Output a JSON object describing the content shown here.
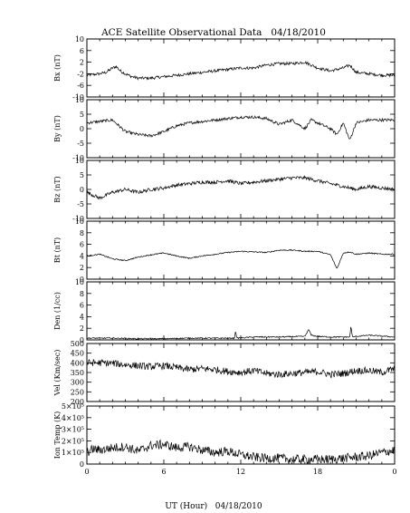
{
  "chart_data": {
    "type": "line",
    "title": "ACE Satellite Observational Data   04/18/2010",
    "xlabel": "UT (Hour)   04/18/2010",
    "x_ticks": [
      "0",
      "6",
      "12",
      "18",
      "0"
    ],
    "xlim": [
      0,
      24
    ],
    "grid": false,
    "panels": [
      {
        "name": "bx",
        "ylabel": "Bx (nT)",
        "ylim": [
          -10,
          10
        ],
        "yticks": [
          -10,
          -6,
          -2,
          2,
          6,
          10
        ],
        "ytick_labels": [
          "-10",
          "-6",
          "-2",
          "2",
          "6",
          "10"
        ],
        "series": [
          {
            "x": [
              0,
              1,
              1.5,
              2,
              2.3,
              2.6,
              3,
              3.5,
              4,
              5,
              6,
              7,
              8,
              9,
              10,
              11,
              12,
              13,
              14,
              15,
              16,
              17,
              17.5,
              18,
              19,
              19.5,
              20,
              20.5,
              21,
              22,
              23,
              24
            ],
            "y": [
              -2.5,
              -2,
              -1.5,
              0,
              0.5,
              -1,
              -2,
              -3,
              -3.5,
              -3.5,
              -3,
              -2.5,
              -2,
              -1.5,
              -1,
              -0.5,
              0,
              0,
              1,
              1.5,
              1.5,
              2,
              1,
              0,
              -1,
              -0.5,
              0,
              1,
              -1.5,
              -2,
              -2.5,
              -2.5
            ]
          }
        ]
      },
      {
        "name": "by",
        "ylabel": "By (nT)",
        "ylim": [
          -10,
          10
        ],
        "yticks": [
          -10,
          -5,
          0,
          5,
          10
        ],
        "ytick_labels": [
          "-10",
          "-5",
          "0",
          "5",
          "10"
        ],
        "series": [
          {
            "x": [
              0,
              1,
              2,
              2.5,
              3,
              4,
              5,
              6,
              7,
              8,
              9,
              10,
              11,
              12,
              13,
              14,
              15,
              16,
              17,
              17.5,
              18,
              18.5,
              19,
              19.5,
              20,
              20.5,
              21,
              22,
              23,
              24
            ],
            "y": [
              2,
              2.5,
              3,
              1,
              -1,
              -2,
              -2.5,
              -1,
              1,
              2,
              2.5,
              3,
              3.5,
              4,
              4,
              3.5,
              1.5,
              3,
              0,
              3,
              2,
              1,
              0,
              -2,
              2,
              -4,
              2,
              3,
              3,
              3
            ]
          }
        ]
      },
      {
        "name": "bz",
        "ylabel": "Bz (nT)",
        "ylim": [
          -10,
          10
        ],
        "yticks": [
          -10,
          -5,
          0,
          5,
          10
        ],
        "ytick_labels": [
          "-10",
          "-5",
          "0",
          "5",
          "10"
        ],
        "series": [
          {
            "x": [
              0,
              0.5,
              1,
              1.5,
              2,
              3,
              4,
              5,
              6,
              7,
              8,
              9,
              10,
              11,
              12,
              13,
              14,
              15,
              16,
              17,
              18,
              19,
              20,
              21,
              22,
              23,
              24
            ],
            "y": [
              -1,
              -2,
              -3,
              -2,
              -1,
              0,
              -1,
              0,
              0.5,
              1.5,
              2,
              2.5,
              2.5,
              3,
              2,
              2.5,
              3,
              3.5,
              4,
              4,
              3,
              2,
              1,
              0,
              1,
              0.5,
              0
            ]
          }
        ]
      },
      {
        "name": "bt",
        "ylabel": "Bt (nT)",
        "ylim": [
          0,
          10
        ],
        "yticks": [
          0,
          2,
          4,
          6,
          8,
          10
        ],
        "ytick_labels": [
          "0",
          "2",
          "4",
          "6",
          "8",
          "10"
        ],
        "series": [
          {
            "x": [
              0,
              1,
              2,
              3,
              4,
              5,
              6,
              7,
              8,
              9,
              10,
              11,
              12,
              13,
              14,
              15,
              16,
              17,
              18,
              19,
              19.5,
              20,
              20.5,
              21,
              22,
              23,
              24
            ],
            "y": [
              4,
              4.3,
              3.5,
              3.2,
              3.8,
              4.2,
              4.5,
              4,
              3.6,
              4,
              4.3,
              4.6,
              4.8,
              4.7,
              4.6,
              5,
              5,
              4.8,
              4.8,
              4.2,
              1.8,
              4.5,
              4.7,
              4.3,
              4.5,
              4.3,
              4.3
            ]
          }
        ]
      },
      {
        "name": "den",
        "ylabel": "Den (1/cc)",
        "ylim": [
          0,
          10
        ],
        "yticks": [
          0,
          2,
          4,
          6,
          8,
          10
        ],
        "ytick_labels": [
          "0",
          "2",
          "4",
          "6",
          "8",
          "10"
        ],
        "series": [
          {
            "x": [
              0,
              2,
              4,
              6,
              8,
              10,
              11.5,
              11.6,
              11.7,
              13,
              15,
              17,
              17.3,
              17.5,
              18,
              19,
              20.5,
              20.6,
              20.7,
              21,
              22,
              24
            ],
            "y": [
              0.3,
              0.3,
              0.2,
              0.2,
              0.3,
              0.3,
              0.3,
              1.5,
              0.3,
              0.5,
              0.5,
              0.6,
              1.8,
              0.8,
              0.6,
              0.5,
              0.5,
              2.5,
              0.5,
              0.6,
              0.8,
              0.5
            ]
          }
        ]
      },
      {
        "name": "vel",
        "ylabel": "Vel (Km/sec)",
        "ylim": [
          200,
          500
        ],
        "yticks": [
          200,
          250,
          300,
          350,
          400,
          450,
          500
        ],
        "ytick_labels": [
          "200",
          "250",
          "300",
          "350",
          "400",
          "450",
          "500"
        ],
        "series": [
          {
            "x": [
              0,
              1,
              2,
              3,
              4,
              5,
              6,
              7,
              8,
              9,
              10,
              11,
              12,
              13,
              14,
              15,
              16,
              17,
              18,
              19,
              20,
              21,
              22,
              23,
              24
            ],
            "y": [
              400,
              400,
              398,
              390,
              385,
              380,
              385,
              375,
              365,
              370,
              365,
              355,
              350,
              360,
              345,
              340,
              345,
              350,
              355,
              340,
              345,
              360,
              360,
              350,
              370
            ]
          }
        ]
      },
      {
        "name": "temp",
        "ylabel": "Ion Temp (K)",
        "ylim": [
          0,
          500000
        ],
        "yticks": [
          0,
          100000,
          200000,
          300000,
          400000,
          500000
        ],
        "ytick_labels": [
          "0",
          "1×10⁵",
          "2×10⁵",
          "3×10⁵",
          "4×10⁵",
          "5×10⁵"
        ],
        "series": [
          {
            "x": [
              0,
              0.5,
              1,
              2,
              3,
              4,
              5,
              6,
              7,
              8,
              9,
              10,
              11,
              12,
              13,
              14,
              15,
              16,
              17,
              18,
              19,
              20,
              21,
              22,
              23,
              24
            ],
            "y": [
              100000,
              130000,
              120000,
              140000,
              150000,
              110000,
              160000,
              170000,
              140000,
              150000,
              120000,
              100000,
              110000,
              80000,
              60000,
              50000,
              50000,
              40000,
              40000,
              40000,
              40000,
              50000,
              60000,
              70000,
              100000,
              120000
            ]
          }
        ]
      }
    ]
  }
}
